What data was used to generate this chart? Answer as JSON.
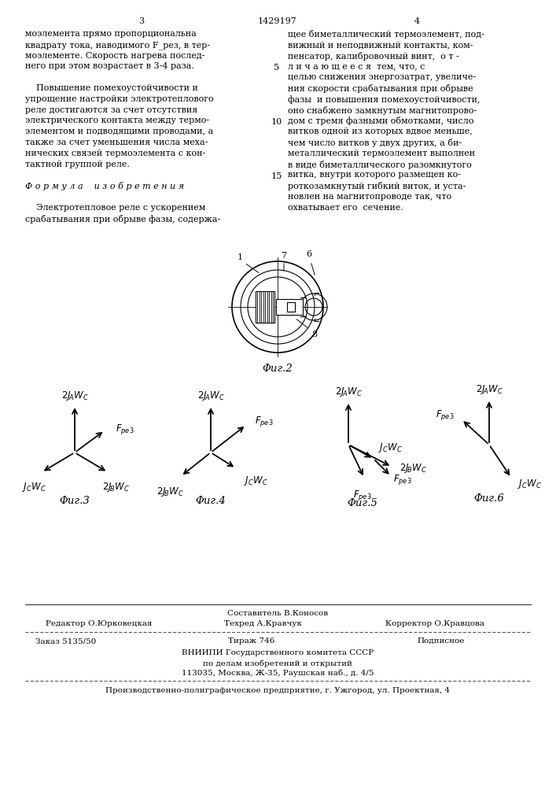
{
  "page_num_left": "3",
  "page_num_center": "1429197",
  "page_num_right": "4",
  "col1_lines": [
    "моэлемента прямо пропорциональна",
    "квадрату тока, наводимого F_рез, в тер-",
    "моэлементе. Скорость нагрева послед-",
    "него при этом возрастает в 3-4 раза.",
    "",
    "    Повышение помехоустойчивости и",
    "упрощение настройки электротеплового",
    "реле достигаются за счет отсутствия",
    "электрического контакта между термо-",
    "элементом и подводящими проводами, а",
    "также за счет уменьшения числа меха-",
    "нических связей термоэлемента с кон-",
    "тактной группой реле.",
    "",
    "Ф о р м у л а    и з о б р е т е н и я",
    "",
    "    Электротепловое реле с ускорением",
    "срабатывания при обрыве фазы, содержа-"
  ],
  "col2_lines": [
    "щее биметаллический термоэлемент, под-",
    "вижный и неподвижный контакты, ком-",
    "пенсатор, калибровочный винт,  о т -",
    "л и ч а ю щ е е с я  тем, что, с",
    "целью снижения энергозатрат, увеличе-",
    "ния скорости срабатывания при обрыве",
    "фазы  и повышения помехоустойчивости,",
    "оно снабжено замкнутым магнитопрово-",
    "дом с тремя фазными обмотками, число",
    "витков одной из которых вдвое меньше,",
    "чем число витков у двух других, а би-",
    "металлический термоэлемент выполнен",
    "в виде биметаллического разомкнутого",
    "витка, внутри которого размещен ко-",
    "роткозамкнутый гибкий виток, и уста-",
    "новлен на магнитопроводе так, что",
    "охватывает его  сечение."
  ],
  "line_numbers_rows": [
    3,
    8,
    13
  ],
  "line_numbers_vals": [
    5,
    10,
    15
  ],
  "fig2_caption": "Φиг.2",
  "fig3_caption": "Φиг.3",
  "fig4_caption": "Φиг.4",
  "fig5_caption": "Φиг.5",
  "fig6_caption": "Φиг.6",
  "footer_sestavitel": "Составитель В.Коносов",
  "footer_redaktor": "Редактор О.Юрковецкая",
  "footer_tekhred": "Техред А.Кравчук",
  "footer_korrektor": "Корректор О.Кравцова",
  "footer_zakaz": "Заказ 5135/50",
  "footer_tirazh": "Тираж 746",
  "footer_podpisnoe": "Подписное",
  "footer_vniip1": "ВНИИПИ Государственного комитета СССР",
  "footer_vniip2": "по делам изобретений и открытий",
  "footer_vniip3": "113035, Москва, Ж-35, Раушская наб., д. 4/5",
  "footer_proizv": "Производственно-полиграфическое предприятие, г. Ужгород, ул. Проектная, 4"
}
